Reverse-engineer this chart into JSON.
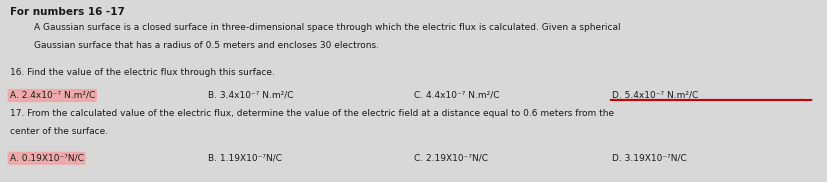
{
  "bg_color": "#d8d8d8",
  "title_line": "For numbers 16 -17",
  "intro_line1": "A Gaussian surface is a closed surface in three-dimensional space through which the electric flux is calculated. Given a spherical",
  "intro_line2": "Gaussian surface that has a radius of 0.5 meters and encloses 30 electrons.",
  "q16_text": "16. Find the value of the electric flux through this surface.",
  "q16_options": [
    {
      "label": "A. 2.4x10⁻⁷ N.m²/C",
      "highlight": true
    },
    {
      "label": "B. 3.4x10⁻⁷ N.m²/C",
      "highlight": false
    },
    {
      "label": "C. 4.4x10⁻⁷ N.m²/C",
      "highlight": false
    },
    {
      "label": "D. 5.4x10⁻⁷ N.m²/C",
      "highlight": true,
      "strikethrough": true
    }
  ],
  "q17_text": "17. From the calculated value of the electric flux, determine the value of the electric field at a distance equal to 0.6 meters from the",
  "q17_text2": "center of the surface.",
  "q17_options": [
    {
      "label": "A. 0.19X10⁻⁷N/C",
      "highlight": true
    },
    {
      "label": "B. 1.19X10⁻⁷N/C",
      "highlight": false
    },
    {
      "label": "C. 2.19X10⁻⁷N/C",
      "highlight": false
    },
    {
      "label": "D. 3.19X10⁻⁷N/C",
      "highlight": false
    }
  ],
  "highlight_pink": "#f4a0a0",
  "highlight_red_line": "#cc0000",
  "text_color": "#1a1a1a",
  "font_size_title": 7.5,
  "font_size_body": 6.5,
  "font_size_options": 6.5
}
